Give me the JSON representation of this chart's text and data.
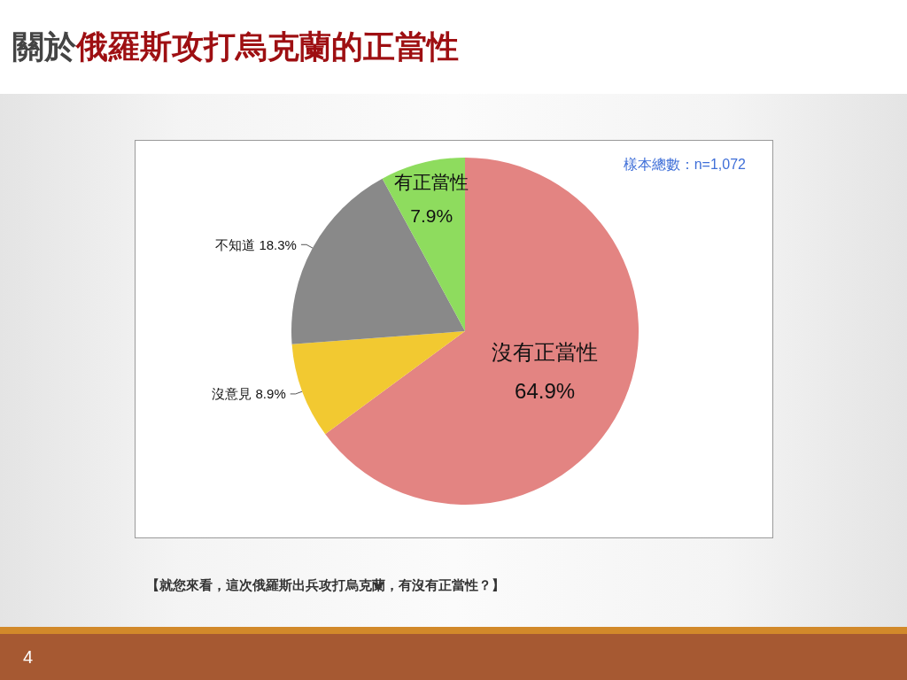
{
  "chart_data": {
    "type": "pie",
    "title": "關於俄羅斯攻打烏克蘭的正當性",
    "categories": [
      "沒有正當性",
      "沒意見",
      "不知道",
      "有正當性"
    ],
    "values": [
      64.9,
      8.9,
      18.3,
      7.9
    ],
    "colors": [
      "#e38482",
      "#f2c931",
      "#898989",
      "#8edc5e"
    ],
    "value_labels": [
      "64.9%",
      "8.9%",
      "18.3%",
      "7.9%"
    ],
    "annotations": [
      "樣本總數：n=1,072",
      "【就您來看，這次俄羅斯出兵攻打烏克蘭，有沒有正當性？】",
      "4"
    ]
  }
}
